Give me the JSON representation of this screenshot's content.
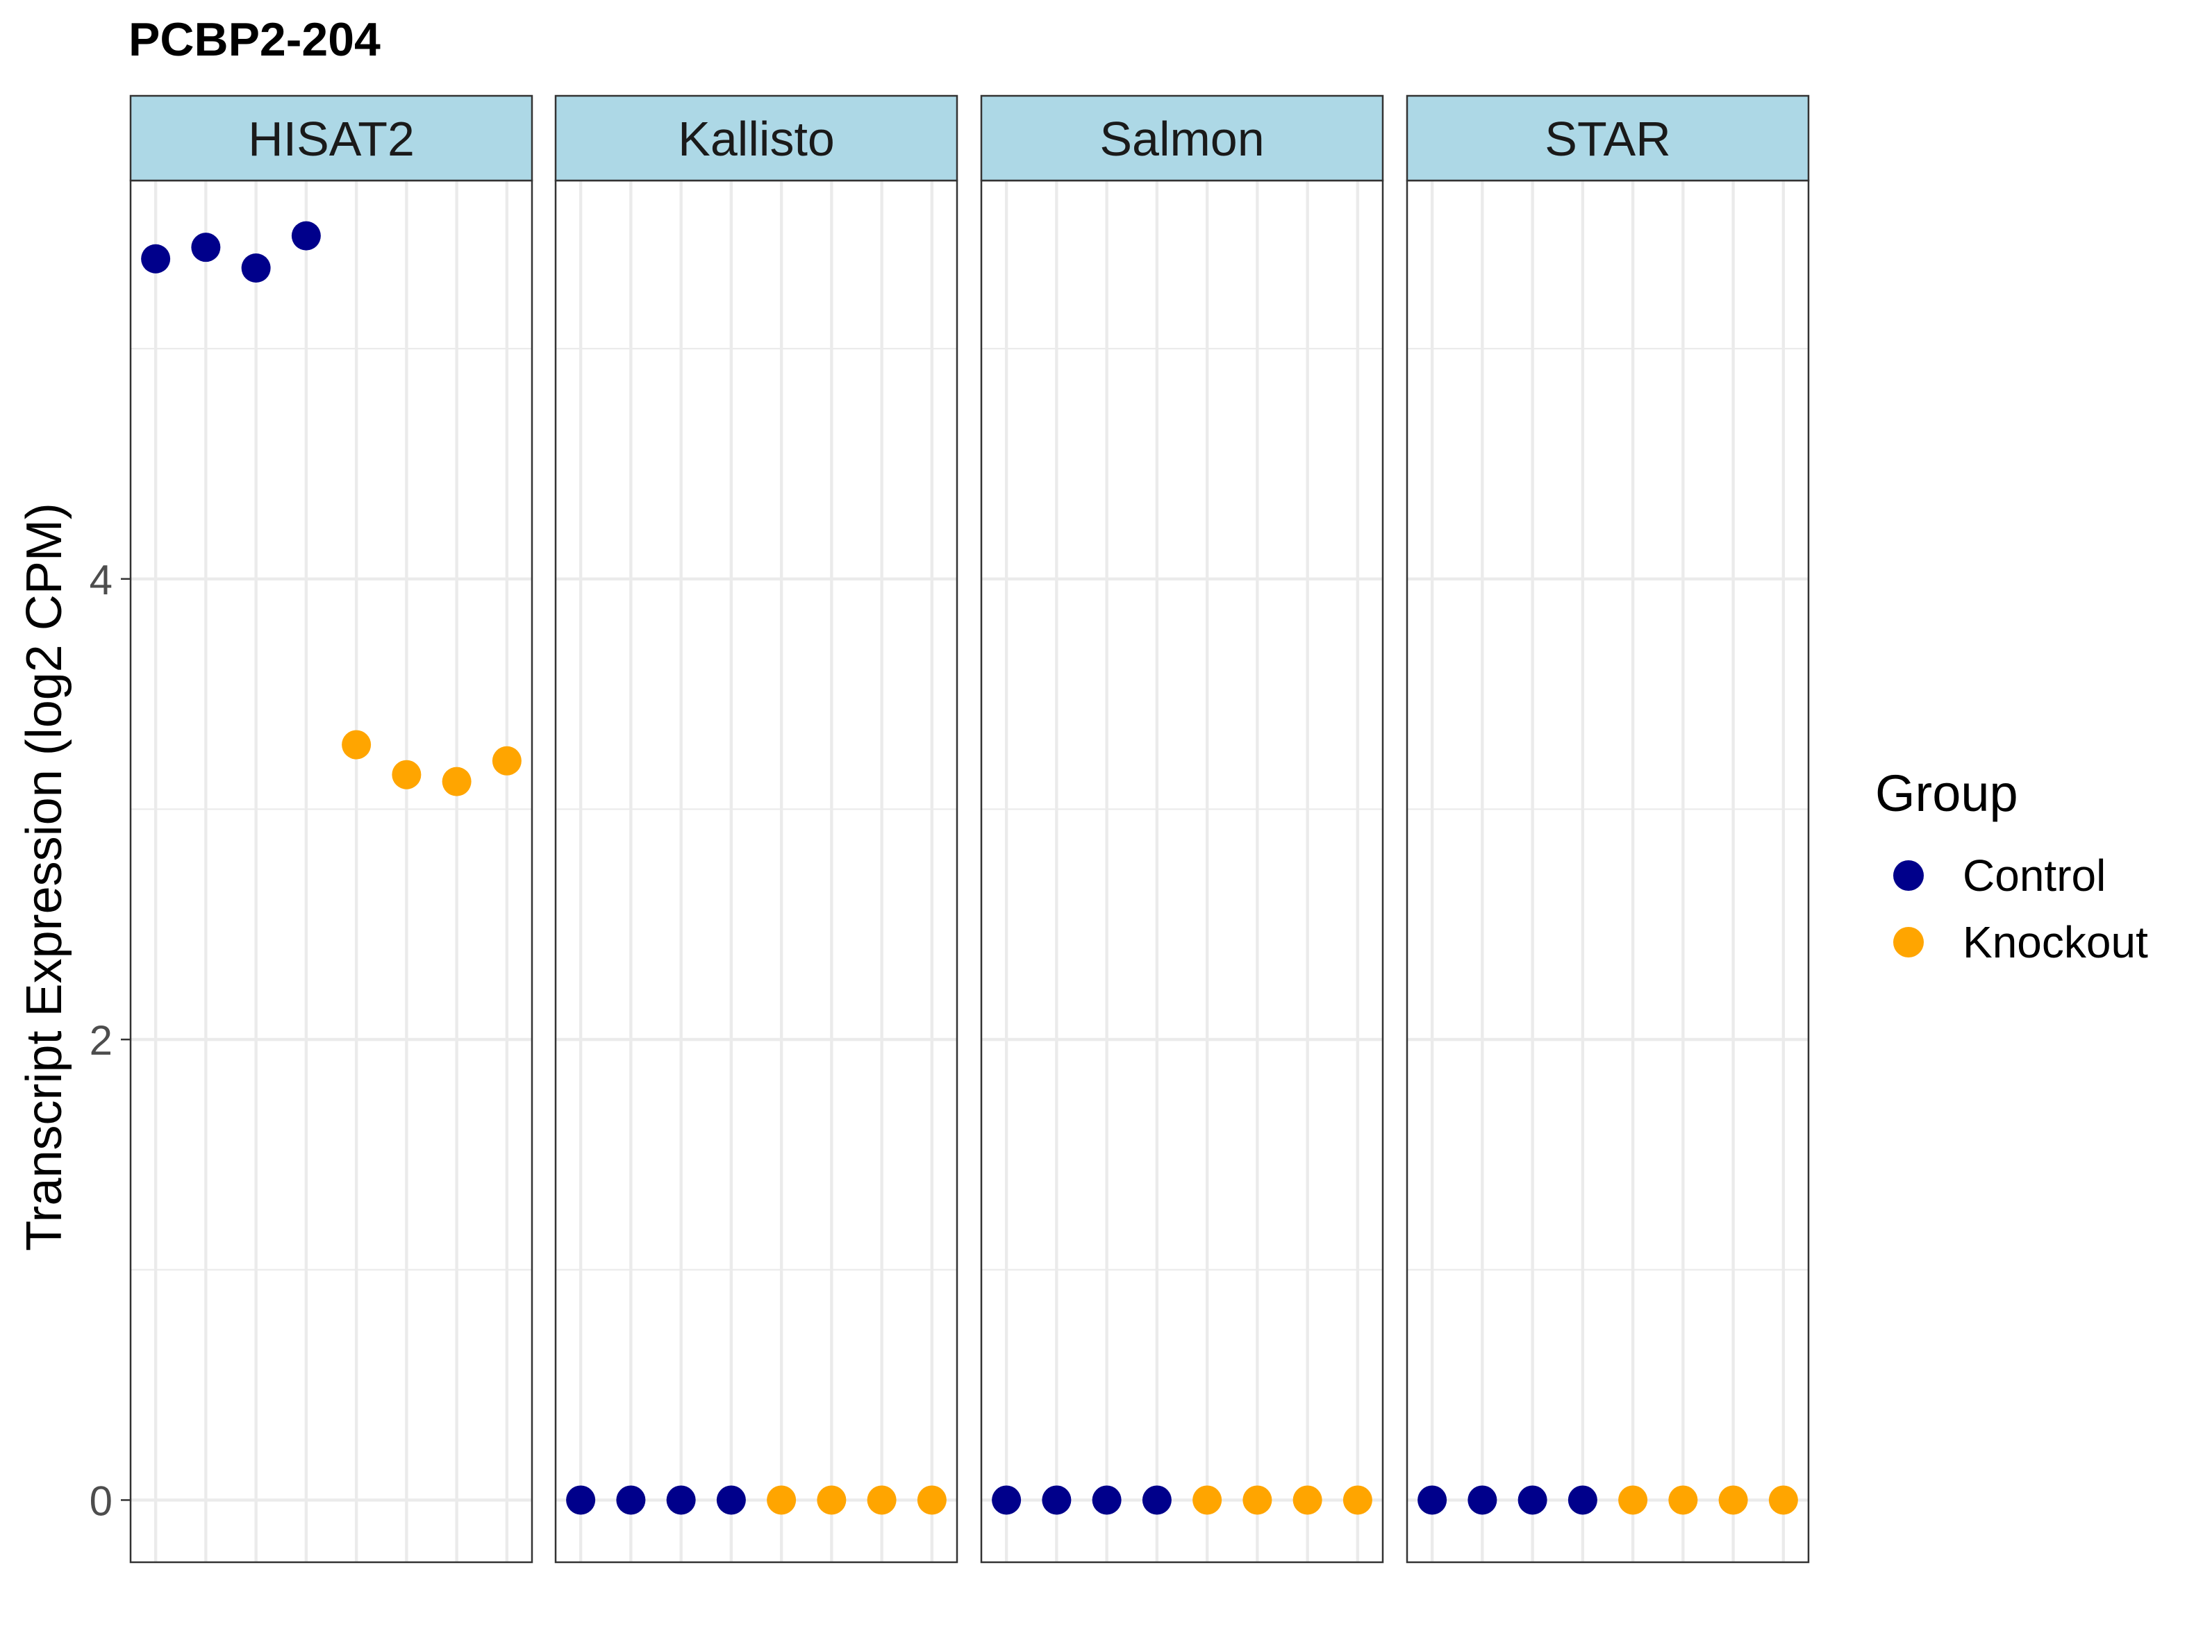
{
  "chart_data": {
    "type": "scatter",
    "title": "PCBP2-204",
    "ylabel": "Transcript Expression (log2 CPM)",
    "xlabel": "",
    "ylim": [
      -0.27,
      5.73
    ],
    "y_ticks": [
      0,
      2,
      4
    ],
    "grid": true,
    "legend": {
      "title": "Group",
      "position": "right",
      "entries": [
        {
          "name": "Control",
          "color": "#00008B"
        },
        {
          "name": "Knockout",
          "color": "#FFA500"
        }
      ]
    },
    "x_slots": 8,
    "panels": [
      {
        "name": "HISAT2",
        "series": [
          {
            "name": "Control",
            "color": "#00008B",
            "x": [
              1,
              2,
              3,
              4
            ],
            "y": [
              5.39,
              5.44,
              5.35,
              5.49
            ]
          },
          {
            "name": "Knockout",
            "color": "#FFA500",
            "x": [
              5,
              6,
              7,
              8
            ],
            "y": [
              3.28,
              3.15,
              3.12,
              3.21
            ]
          }
        ]
      },
      {
        "name": "Kallisto",
        "series": [
          {
            "name": "Control",
            "color": "#00008B",
            "x": [
              1,
              2,
              3,
              4
            ],
            "y": [
              0,
              0,
              0,
              0
            ]
          },
          {
            "name": "Knockout",
            "color": "#FFA500",
            "x": [
              5,
              6,
              7,
              8
            ],
            "y": [
              0,
              0,
              0,
              0
            ]
          }
        ]
      },
      {
        "name": "Salmon",
        "series": [
          {
            "name": "Control",
            "color": "#00008B",
            "x": [
              1,
              2,
              3,
              4
            ],
            "y": [
              0,
              0,
              0,
              0
            ]
          },
          {
            "name": "Knockout",
            "color": "#FFA500",
            "x": [
              5,
              6,
              7,
              8
            ],
            "y": [
              0,
              0,
              0,
              0
            ]
          }
        ]
      },
      {
        "name": "STAR",
        "series": [
          {
            "name": "Control",
            "color": "#00008B",
            "x": [
              1,
              2,
              3,
              4
            ],
            "y": [
              0,
              0,
              0,
              0
            ]
          },
          {
            "name": "Knockout",
            "color": "#FFA500",
            "x": [
              5,
              6,
              7,
              8
            ],
            "y": [
              0,
              0,
              0,
              0
            ]
          }
        ]
      }
    ],
    "strip_color": "#ADD8E6"
  }
}
